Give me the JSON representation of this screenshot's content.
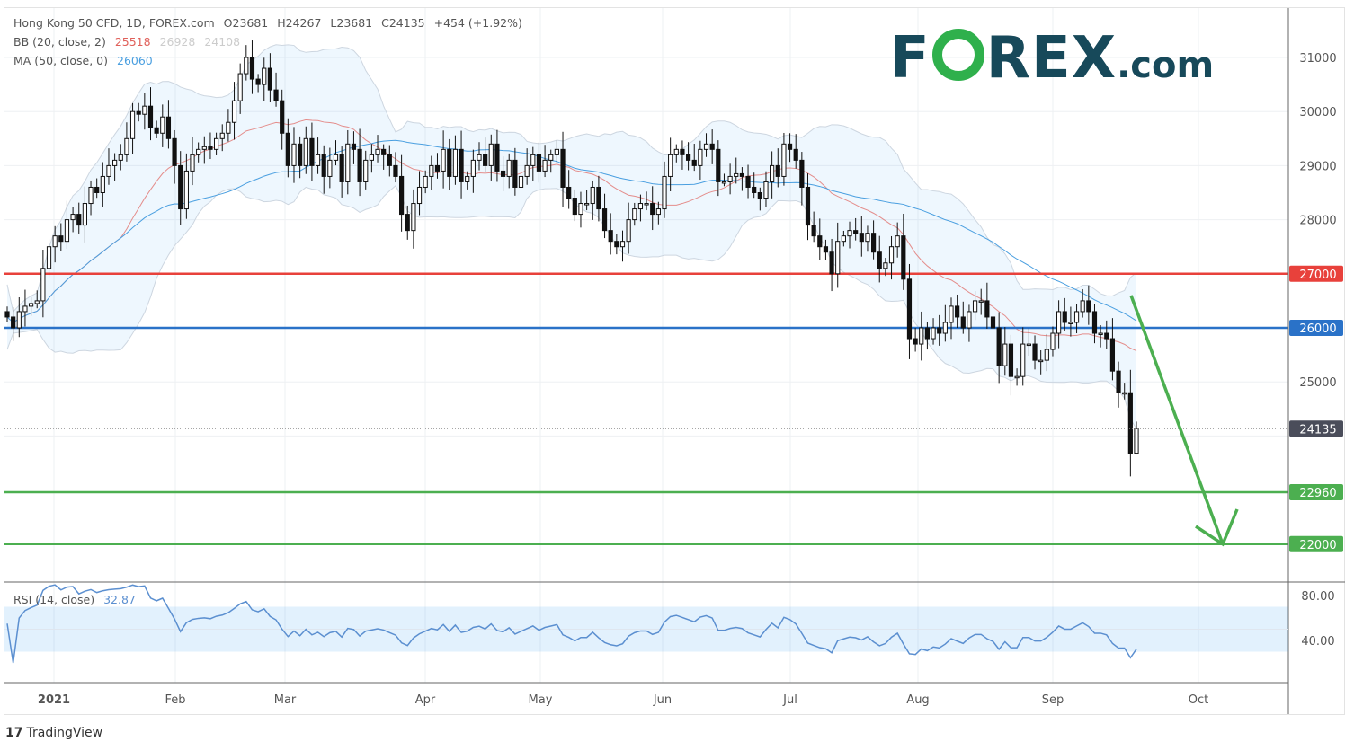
{
  "header": {
    "symbol": "Hong Kong 50 CFD, 1D, FOREX.com",
    "open": "O23681",
    "high": "H24267",
    "low": "L23681",
    "close": "C24135",
    "change": "+454 (+1.92%)"
  },
  "bb": {
    "label": "BB (20, close, 2)",
    "basis": "25518",
    "upper": "26928",
    "lower": "24108",
    "color": "#e0605a"
  },
  "ma": {
    "label": "MA (50, close, 0)",
    "value": "26060",
    "color": "#4a9fe0"
  },
  "rsi": {
    "label": "RSI (14, close)",
    "value": "32.87",
    "ticks": [
      "80.00",
      "40.00"
    ],
    "band": [
      30,
      70
    ],
    "color": "#5b8fd0"
  },
  "logo": {
    "left": "F",
    "right": "REX",
    "domain": ".com"
  },
  "footer": {
    "brand": "TradingView"
  },
  "chart_data": {
    "type": "candlestick",
    "ylim": [
      21500,
      31900
    ],
    "y_ticks": [
      "31000",
      "30000",
      "29000",
      "28000",
      "27000",
      "26000",
      "25000",
      "24000"
    ],
    "x_ticks": [
      "2021",
      "Feb",
      "Mar",
      "Apr",
      "May",
      "Jun",
      "Jul",
      "Aug",
      "Sep",
      "Oct"
    ],
    "last_candle": {
      "open": 23681,
      "high": 24267,
      "low": 23681,
      "close": 24135
    },
    "closes": [
      26200,
      26000,
      26300,
      26400,
      26450,
      26500,
      27100,
      27500,
      27700,
      27600,
      28000,
      28100,
      27900,
      28300,
      28600,
      28500,
      28800,
      29000,
      29100,
      29200,
      29500,
      30000,
      29950,
      30100,
      29700,
      29600,
      29900,
      29500,
      29000,
      28200,
      28900,
      29200,
      29300,
      29350,
      29300,
      29500,
      29600,
      29800,
      30200,
      30700,
      31000,
      30600,
      30500,
      30800,
      30400,
      30200,
      29600,
      29000,
      29400,
      29000,
      29500,
      29000,
      29200,
      28800,
      29100,
      29200,
      28700,
      29400,
      29300,
      28700,
      29100,
      29200,
      29300,
      29200,
      29000,
      28800,
      28100,
      27800,
      28300,
      28600,
      28800,
      29000,
      28900,
      29300,
      28800,
      29300,
      28700,
      28800,
      29100,
      29200,
      29000,
      29400,
      28900,
      28800,
      29100,
      28600,
      28800,
      29000,
      29200,
      28900,
      29100,
      29200,
      29300,
      28600,
      28400,
      28100,
      28300,
      28300,
      28600,
      28200,
      27800,
      27600,
      27500,
      27600,
      28000,
      28200,
      28300,
      28300,
      28100,
      28200,
      28800,
      29200,
      29300,
      29200,
      29100,
      29000,
      29300,
      29400,
      29300,
      28700,
      28700,
      28800,
      28850,
      28800,
      28600,
      28500,
      28400,
      28700,
      29000,
      28800,
      29400,
      29300,
      29100,
      28600,
      27900,
      27700,
      27500,
      27400,
      27000,
      27600,
      27700,
      27800,
      27750,
      27600,
      27750,
      27400,
      27100,
      27200,
      27500,
      27700,
      26900,
      25800,
      25700,
      26000,
      25800,
      26000,
      25900,
      26100,
      26400,
      26200,
      26000,
      26300,
      26500,
      26500,
      26200,
      26000,
      25300,
      25700,
      25100,
      25100,
      25700,
      25700,
      25400,
      25400,
      25600,
      25900,
      26300,
      26100,
      26100,
      26300,
      26500,
      26300,
      25900,
      25900,
      25800,
      25200,
      24800,
      24800,
      23681,
      24135
    ],
    "levels": [
      {
        "value": 27000,
        "label": "27000",
        "color": "#e8413b"
      },
      {
        "value": 26000,
        "label": "26000",
        "color": "#2a72c8"
      },
      {
        "value": 22960,
        "label": "22960",
        "color": "#4caf50"
      },
      {
        "value": 22000,
        "label": "22000",
        "color": "#4caf50"
      }
    ],
    "last_price_label": "24135",
    "forecast_arrow": {
      "from": 26600,
      "to": 22000,
      "color": "#4caf50"
    }
  }
}
